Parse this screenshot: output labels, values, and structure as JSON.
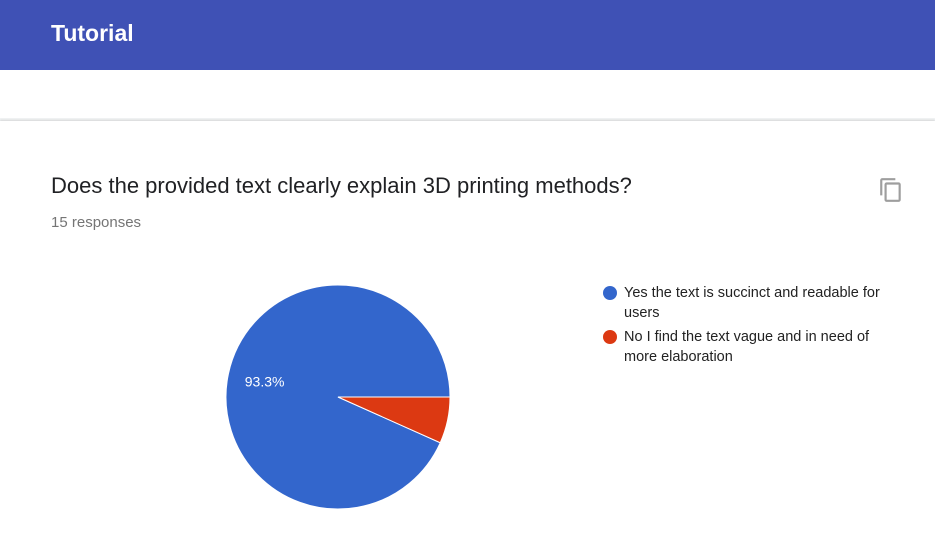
{
  "header": {
    "title": "Tutorial",
    "color": "#3f51b5"
  },
  "question": {
    "title": "Does the provided text clearly explain 3D printing methods?",
    "responses": "15 responses",
    "copy_icon": "copy-icon"
  },
  "chart_data": {
    "type": "pie",
    "categories": [
      "Yes the text is succinct and readable for users",
      "No I find the text vague and in need of more elaboration"
    ],
    "values": [
      93.3,
      6.7
    ],
    "slice_labels": [
      "93.3%",
      ""
    ],
    "colors": [
      "#3366cc",
      "#dc3912"
    ],
    "legend_position": "right"
  }
}
